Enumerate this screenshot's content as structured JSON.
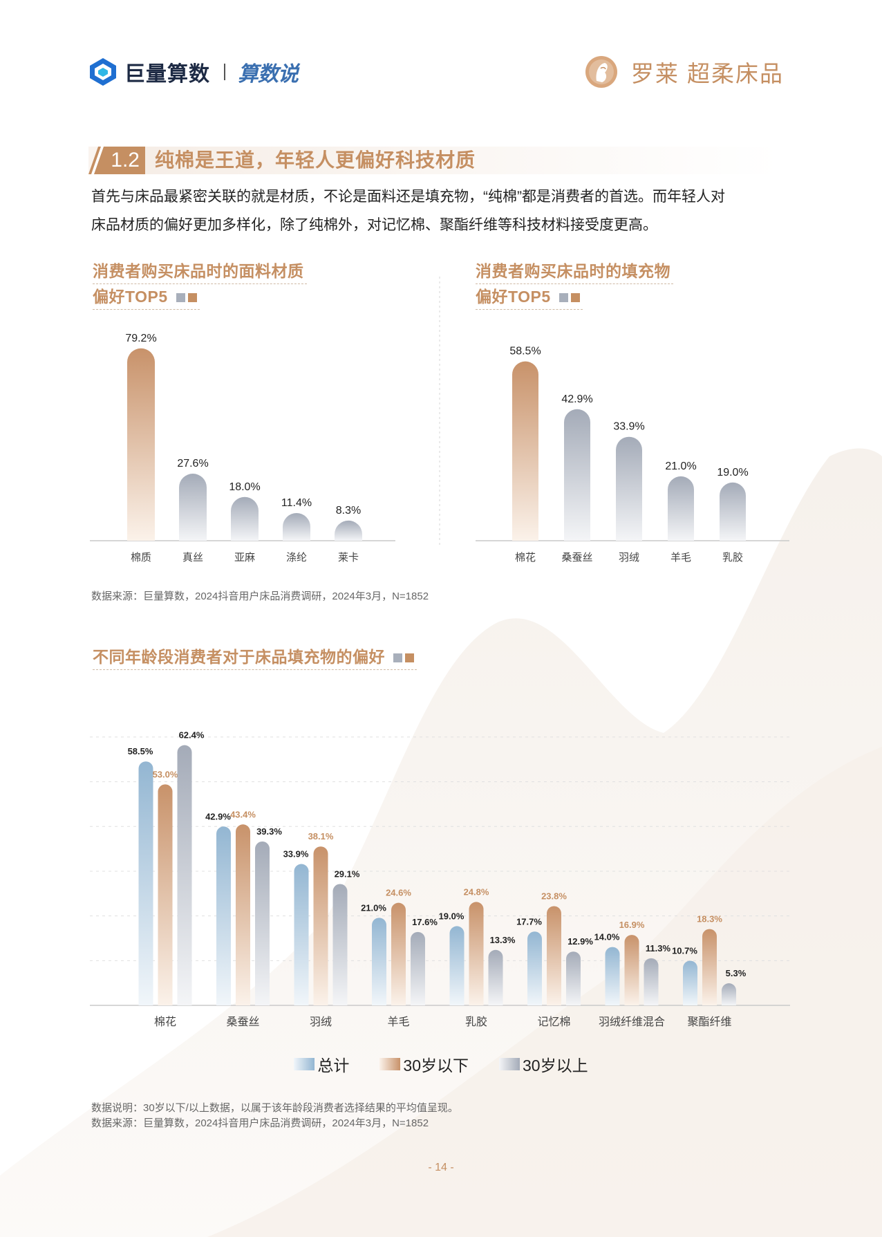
{
  "header": {
    "brand_name": "巨量算数",
    "brand_sub": "算数说",
    "partner_name": "罗莱 超柔床品"
  },
  "section": {
    "number": "1.2",
    "title": "纯棉是王道，年轻人更偏好科技材质"
  },
  "intro": {
    "line1": "首先与床品最紧密关联的就是材质，不论是面料还是填充物，“纯棉”都是消费者的首选。而年轻人对",
    "line2": "床品材质的偏好更加多样化，除了纯棉外，对记忆棉、聚酯纤维等科技材料接受度更高。"
  },
  "chart1_title": {
    "line1": "消费者购买床品时的面料材质",
    "line2": "偏好TOP5"
  },
  "chart2_title": {
    "line1": "消费者购买床品时的填充物",
    "line2": "偏好TOP5"
  },
  "chart3_title": "不同年龄段消费者对于床品填充物的偏好",
  "source1": "数据来源：巨量算数，2024抖音用户床品消费调研，2024年3月，N=1852",
  "note": "数据说明：30岁以下/以上数据，以属于该年龄段消费者选择结果的平均值呈现。",
  "source2": "数据来源：巨量算数，2024抖音用户床品消费调研，2024年3月，N=1852",
  "page_number": "- 14 -",
  "colors": {
    "accent": "#c58f62",
    "blue": "#9dbbd4",
    "gray": "#a8afbb"
  },
  "chart_data": [
    {
      "type": "bar",
      "title": "消费者购买床品时的面料材质偏好TOP5",
      "categories": [
        "棉质",
        "真丝",
        "亚麻",
        "涤纶",
        "莱卡"
      ],
      "values": [
        79.2,
        27.6,
        18.0,
        11.4,
        8.3
      ],
      "labels": [
        "79.2%",
        "27.6%",
        "18.0%",
        "11.4%",
        "8.3%"
      ],
      "ylim": [
        0,
        80
      ]
    },
    {
      "type": "bar",
      "title": "消费者购买床品时的填充物偏好TOP5",
      "categories": [
        "棉花",
        "桑蚕丝",
        "羽绒",
        "羊毛",
        "乳胶"
      ],
      "values": [
        58.5,
        42.9,
        33.9,
        21.0,
        19.0
      ],
      "labels": [
        "58.5%",
        "42.9%",
        "33.9%",
        "21.0%",
        "19.0%"
      ],
      "ylim": [
        0,
        60
      ]
    },
    {
      "type": "bar",
      "title": "不同年龄段消费者对于床品填充物的偏好",
      "categories": [
        "棉花",
        "桑蚕丝",
        "羽绒",
        "羊毛",
        "乳胶",
        "记忆棉",
        "羽绒纤维混合",
        "聚酯纤维"
      ],
      "series": [
        {
          "name": "总计",
          "values": [
            58.5,
            42.9,
            33.9,
            21.0,
            19.0,
            17.7,
            14.0,
            10.7
          ],
          "labels": [
            "58.5%",
            "42.9%",
            "33.9%",
            "21.0%",
            "19.0%",
            "17.7%",
            "14.0%",
            "10.7%"
          ]
        },
        {
          "name": "30岁以下",
          "values": [
            53.0,
            43.4,
            38.1,
            24.6,
            24.8,
            23.8,
            16.9,
            18.3
          ],
          "labels": [
            "53.0%",
            "43.4%",
            "38.1%",
            "24.6%",
            "24.8%",
            "23.8%",
            "16.9%",
            "18.3%"
          ]
        },
        {
          "name": "30岁以上",
          "values": [
            62.4,
            39.3,
            29.1,
            17.6,
            13.3,
            12.9,
            11.3,
            5.3
          ],
          "labels": [
            "62.4%",
            "39.3%",
            "29.1%",
            "17.6%",
            "13.3%",
            "12.9%",
            "11.3%",
            "5.3%"
          ]
        }
      ],
      "ylim": [
        0,
        65
      ],
      "grid": true,
      "legend": "bottom-center"
    }
  ]
}
